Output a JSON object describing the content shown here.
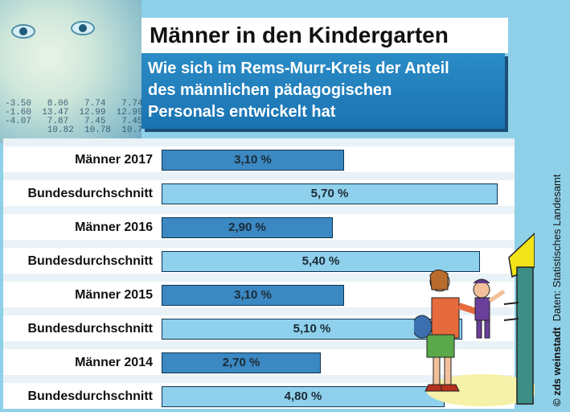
{
  "title": "Männer in den Kindergarten",
  "subtitle_lines": [
    "Wie sich im Rems-Murr-Kreis der Anteil",
    "des männlichen pädagogischen",
    "Personals entwickelt hat"
  ],
  "credit": "© zds weinstadt",
  "source": "Daten: Statistisches Landesamt",
  "photo_numbers": "-3.50   8.06   7.74   7.74\n-1.60  13.47  12.99  12.99\n-4.07   7.87   7.45   7.45\n        10.82  10.78  10.78",
  "colors": {
    "men": "#3b88c2",
    "national": "#8fd0ec",
    "text": "#1b2b36"
  },
  "chart_data": {
    "type": "bar",
    "orientation": "horizontal",
    "title": "Männer in den Kindergarten",
    "subtitle": "Wie sich im Rems-Murr-Kreis der Anteil des männlichen pädagogischen Personals entwickelt hat",
    "unit": "%",
    "categories": [
      "Männer 2017",
      "Bundesdurchschnitt",
      "Männer 2016",
      "Bundesdurchschnitt",
      "Männer 2015",
      "Bundesdurchschnitt",
      "Männer 2014",
      "Bundesdurchschnitt"
    ],
    "values": [
      3.1,
      5.7,
      2.9,
      5.4,
      3.1,
      5.1,
      2.7,
      4.8
    ],
    "value_labels": [
      "3,10 %",
      "5,70 %",
      "2,90 %",
      "5,40 %",
      "3,10 %",
      "5,10 %",
      "2,70 %",
      "4,80 %"
    ],
    "series_kind": [
      "men",
      "national",
      "men",
      "national",
      "men",
      "national",
      "men",
      "national"
    ],
    "xlim": [
      0,
      5.8
    ],
    "grid": false,
    "legend": "none"
  }
}
